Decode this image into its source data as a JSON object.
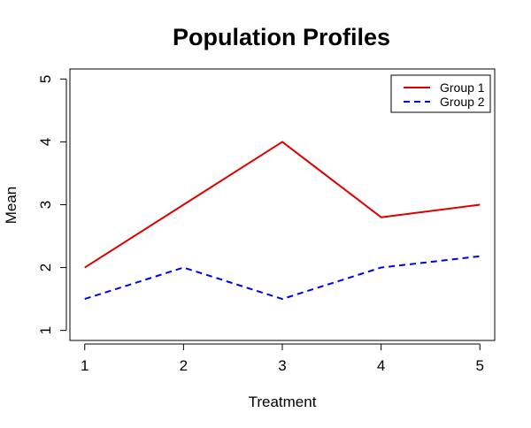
{
  "chart_data": {
    "type": "line",
    "title": "Population Profiles",
    "xlabel": "Treatment",
    "ylabel": "Mean",
    "x": [
      1,
      2,
      3,
      4,
      5
    ],
    "xticks": [
      "1",
      "2",
      "3",
      "4",
      "5"
    ],
    "yticks": [
      "1",
      "2",
      "3",
      "4",
      "5"
    ],
    "xlim": [
      0.85,
      5.15
    ],
    "ylim": [
      0.84,
      5.16
    ],
    "grid": false,
    "legend_position": "top-right",
    "series": [
      {
        "name": "Group 1",
        "values": [
          2,
          3,
          4,
          2.8,
          3
        ],
        "color": "#dd0000",
        "line_style": "solid"
      },
      {
        "name": "Group 2",
        "values": [
          1.5,
          2,
          1.5,
          2,
          2.18
        ],
        "color": "#0000ee",
        "line_style": "dashed"
      }
    ]
  }
}
